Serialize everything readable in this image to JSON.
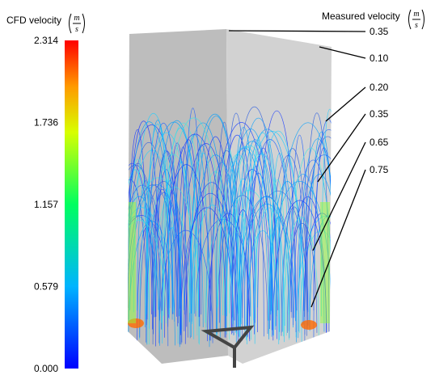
{
  "colorbar": {
    "title": "CFD velocity",
    "unit_numerator": "m",
    "unit_denominator": "s",
    "ticks": [
      "2.314",
      "1.736",
      "1.157",
      "0.579",
      "0.000"
    ]
  },
  "measured": {
    "title": "Measured velocity",
    "unit_numerator": "m",
    "unit_denominator": "s",
    "labels": [
      "0.35",
      "0.10",
      "0.20",
      "0.35",
      "0.65",
      "0.75"
    ]
  }
}
